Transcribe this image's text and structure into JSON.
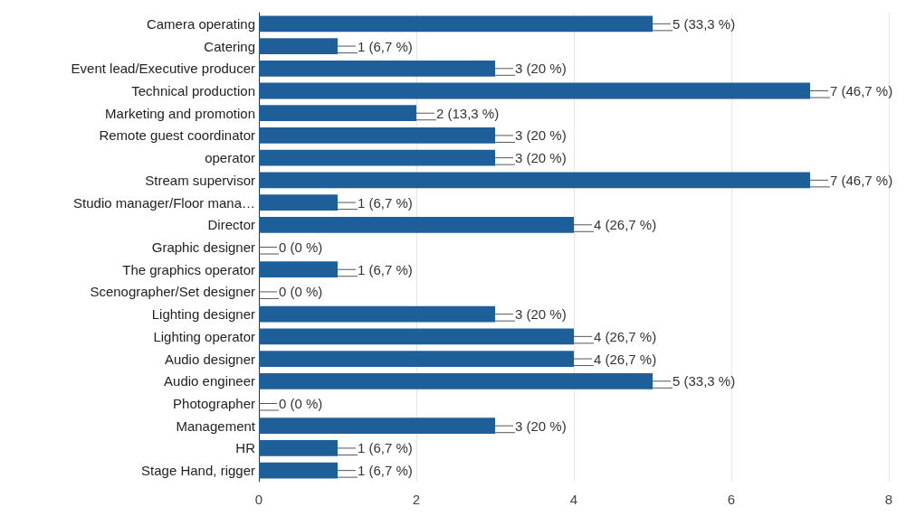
{
  "chart_data": {
    "type": "bar",
    "orientation": "horizontal",
    "categories": [
      "Camera operating",
      "Catering",
      "Event lead/Executive producer",
      "Technical production",
      "Marketing and promotion",
      "Remote guest coordinator",
      "operator",
      "Stream supervisor",
      "Studio manager/Floor mana…",
      "Director",
      "Graphic designer",
      "The graphics operator",
      "Scenographer/Set designer",
      "Lighting designer",
      "Lighting operator",
      "Audio designer",
      "Audio engineer",
      "Photographer",
      "Management",
      "HR",
      "Stage Hand, rigger"
    ],
    "values": [
      5,
      1,
      3,
      7,
      2,
      3,
      3,
      7,
      1,
      4,
      0,
      1,
      0,
      3,
      4,
      4,
      5,
      0,
      3,
      1,
      1
    ],
    "value_labels": [
      "5 (33,3 %)",
      "1 (6,7 %)",
      "3 (20 %)",
      "7 (46,7 %)",
      "2 (13,3 %)",
      "3 (20 %)",
      "3 (20 %)",
      "7 (46,7 %)",
      "1 (6,7 %)",
      "4 (26,7 %)",
      "0 (0 %)",
      "1 (6,7 %)",
      "0 (0 %)",
      "3 (20 %)",
      "4 (26,7 %)",
      "4 (26,7 %)",
      "5 (33,3 %)",
      "0 (0 %)",
      "3 (20 %)",
      "1 (6,7 %)",
      "1 (6,7 %)"
    ],
    "color": "#1f5f99",
    "xlim": [
      0,
      8
    ],
    "xticks": [
      0,
      2,
      4,
      6,
      8
    ],
    "grid": "x"
  }
}
